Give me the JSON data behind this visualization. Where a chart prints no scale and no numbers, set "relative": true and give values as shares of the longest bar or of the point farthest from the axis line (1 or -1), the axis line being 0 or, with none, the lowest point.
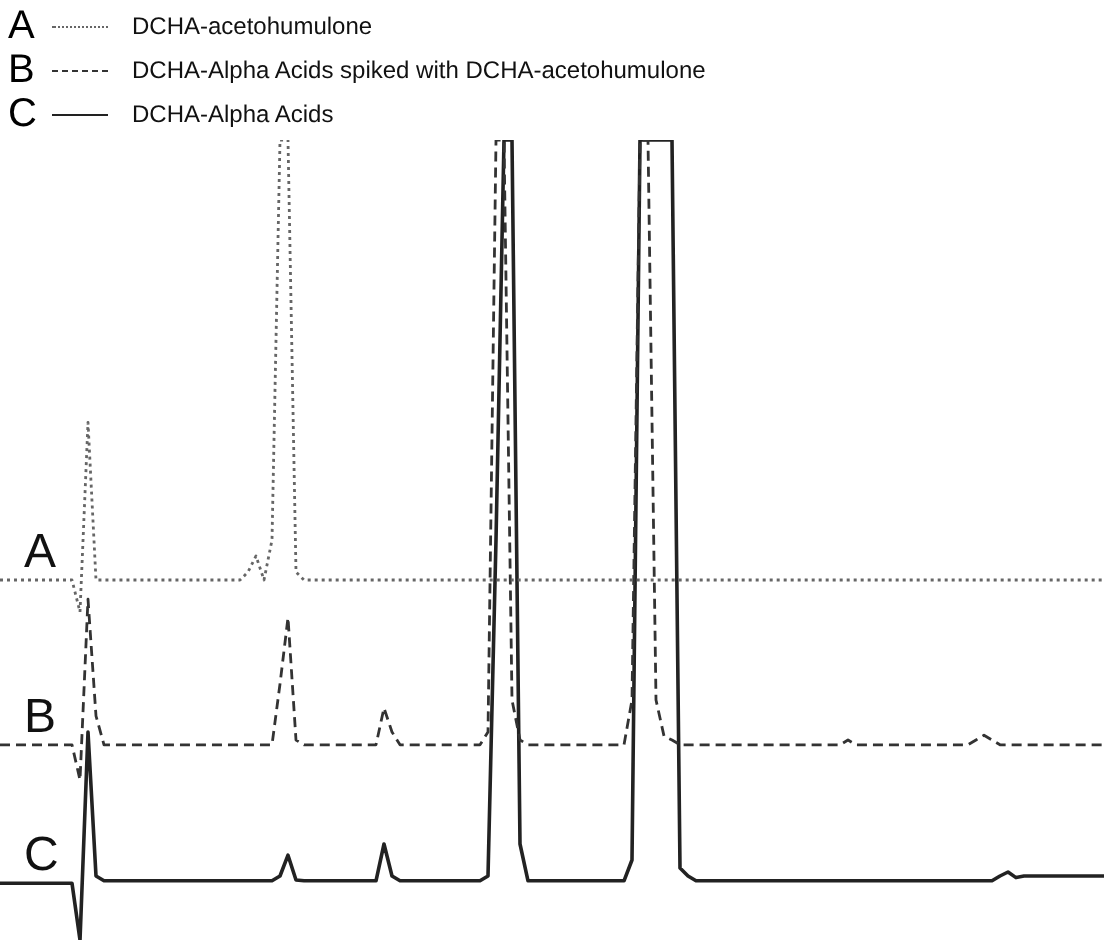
{
  "chart_data": {
    "type": "line",
    "relative": true,
    "legend": "top left",
    "marker": "none",
    "annotations": [
      "A",
      "B",
      "C"
    ],
    "categories": [
      null,
      null,
      null,
      null,
      null,
      null,
      null,
      null,
      null,
      null,
      null,
      null,
      null,
      null,
      null,
      null,
      null,
      null,
      null,
      null,
      null,
      null,
      null,
      null,
      null,
      null,
      null,
      null,
      null,
      null,
      null,
      null,
      null,
      null,
      null,
      null,
      null,
      null,
      null,
      null,
      null,
      null,
      null,
      null,
      null,
      null,
      null,
      null,
      null,
      null,
      null,
      null,
      null,
      null,
      null,
      null,
      null,
      null,
      null,
      null,
      null,
      null,
      null,
      null,
      null,
      null,
      null,
      null,
      null,
      null,
      null,
      null,
      null,
      null,
      null,
      null,
      null,
      null,
      null,
      null,
      null,
      null,
      null,
      null,
      null,
      null,
      null,
      null,
      null,
      null,
      null,
      null,
      null,
      null,
      null,
      null,
      null,
      null,
      null,
      null,
      null,
      null,
      null,
      null,
      null,
      null,
      null,
      null,
      null,
      null,
      null,
      null,
      null,
      null,
      null,
      null,
      null,
      null,
      null,
      null,
      null,
      null,
      null,
      null,
      null,
      null,
      null,
      null,
      null,
      null,
      null,
      null,
      null,
      null,
      null,
      null,
      null,
      null,
      null
    ],
    "series": [
      {
        "name": "DCHA-acetohumulone",
        "color": "#666666",
        "line_style": "dotted",
        "values": [
          0.45,
          0.45,
          0.45,
          0.45,
          0.45,
          0.45,
          0.45,
          0.45,
          0.45,
          0.45,
          0.41,
          0.647,
          0.45,
          0.45,
          0.45,
          0.45,
          0.45,
          0.45,
          0.45,
          0.45,
          0.45,
          0.45,
          0.45,
          0.45,
          0.45,
          0.45,
          0.45,
          0.45,
          0.45,
          0.45,
          0.45,
          0.46,
          0.48,
          0.45,
          0.5,
          1,
          1,
          0.46,
          0.45,
          0.45,
          0.45,
          0.45,
          0.45,
          0.45,
          0.45,
          0.45,
          0.45,
          0.45,
          0.45,
          0.45,
          0.45,
          0.45,
          0.45,
          0.45,
          0.45,
          0.45,
          0.45,
          0.45,
          0.45,
          0.45,
          0.45,
          0.45,
          0.45,
          0.45,
          0.45,
          0.45,
          0.45,
          0.45,
          0.45,
          0.45,
          0.45,
          0.45,
          0.45,
          0.45,
          0.45,
          0.45,
          0.45,
          0.45,
          0.45,
          0.45,
          0.45,
          0.45,
          0.45,
          0.45,
          0.45,
          0.45,
          0.45,
          0.45,
          0.45,
          0.45,
          0.45,
          0.45,
          0.45,
          0.45,
          0.45,
          0.45,
          0.45,
          0.45,
          0.45,
          0.45,
          0.45,
          0.45,
          0.45,
          0.45,
          0.45,
          0.45,
          0.45,
          0.45,
          0.45,
          0.45,
          0.45,
          0.45,
          0.45,
          0.45,
          0.45,
          0.45,
          0.45,
          0.45,
          0.45,
          0.45,
          0.45,
          0.45,
          0.45,
          0.45,
          0.45,
          0.45,
          0.45,
          0.45,
          0.45,
          0.45,
          0.45,
          0.45,
          0.45,
          0.45,
          0.45,
          0.45,
          0.45,
          0.45,
          0.45
        ]
      },
      {
        "name": "DCHA-Alpha Acids spiked with DCHA-acetohumulone",
        "color": "#333333",
        "line_style": "dashed",
        "values": [
          0.244,
          0.244,
          0.244,
          0.244,
          0.244,
          0.244,
          0.244,
          0.244,
          0.244,
          0.244,
          0.2,
          0.426,
          0.28,
          0.244,
          0.244,
          0.244,
          0.244,
          0.244,
          0.244,
          0.244,
          0.244,
          0.244,
          0.244,
          0.244,
          0.244,
          0.244,
          0.244,
          0.244,
          0.244,
          0.244,
          0.244,
          0.244,
          0.244,
          0.244,
          0.244,
          0.32,
          0.403,
          0.25,
          0.244,
          0.244,
          0.244,
          0.244,
          0.244,
          0.244,
          0.244,
          0.244,
          0.244,
          0.244,
          0.29,
          0.26,
          0.244,
          0.244,
          0.244,
          0.244,
          0.244,
          0.244,
          0.244,
          0.244,
          0.244,
          0.244,
          0.244,
          0.26,
          1,
          1,
          0.3,
          0.25,
          0.244,
          0.244,
          0.244,
          0.244,
          0.244,
          0.244,
          0.244,
          0.244,
          0.244,
          0.244,
          0.244,
          0.244,
          0.244,
          0.3,
          1,
          1,
          0.3,
          0.255,
          0.25,
          0.244,
          0.244,
          0.244,
          0.244,
          0.244,
          0.244,
          0.244,
          0.244,
          0.244,
          0.244,
          0.244,
          0.244,
          0.244,
          0.244,
          0.244,
          0.244,
          0.244,
          0.244,
          0.244,
          0.244,
          0.244,
          0.25,
          0.244,
          0.244,
          0.244,
          0.244,
          0.244,
          0.244,
          0.244,
          0.244,
          0.244,
          0.244,
          0.244,
          0.244,
          0.244,
          0.244,
          0.244,
          0.25,
          0.256,
          0.25,
          0.244,
          0.244,
          0.244,
          0.244,
          0.244,
          0.244,
          0.244,
          0.244,
          0.244,
          0.244,
          0.244,
          0.244,
          0.244,
          0.244
        ]
      },
      {
        "name": "DCHA-Alpha Acids",
        "color": "#222222",
        "line_style": "solid",
        "values": [
          0.071,
          0.071,
          0.071,
          0.071,
          0.071,
          0.071,
          0.071,
          0.071,
          0.071,
          0.071,
          0,
          0.26,
          0.08,
          0.074,
          0.074,
          0.074,
          0.074,
          0.074,
          0.074,
          0.074,
          0.074,
          0.074,
          0.074,
          0.074,
          0.074,
          0.074,
          0.074,
          0.074,
          0.074,
          0.074,
          0.074,
          0.074,
          0.074,
          0.074,
          0.074,
          0.08,
          0.106,
          0.075,
          0.074,
          0.074,
          0.074,
          0.074,
          0.074,
          0.074,
          0.074,
          0.074,
          0.074,
          0.074,
          0.12,
          0.08,
          0.074,
          0.074,
          0.074,
          0.074,
          0.074,
          0.074,
          0.074,
          0.074,
          0.074,
          0.074,
          0.074,
          0.08,
          0.5,
          1,
          1,
          0.12,
          0.074,
          0.074,
          0.074,
          0.074,
          0.074,
          0.074,
          0.074,
          0.074,
          0.074,
          0.074,
          0.074,
          0.074,
          0.074,
          0.1,
          1,
          1,
          1,
          1,
          1,
          0.09,
          0.08,
          0.074,
          0.074,
          0.074,
          0.074,
          0.074,
          0.074,
          0.074,
          0.074,
          0.074,
          0.074,
          0.074,
          0.074,
          0.074,
          0.074,
          0.074,
          0.074,
          0.074,
          0.074,
          0.074,
          0.074,
          0.074,
          0.074,
          0.074,
          0.074,
          0.074,
          0.074,
          0.074,
          0.074,
          0.074,
          0.074,
          0.074,
          0.074,
          0.074,
          0.074,
          0.074,
          0.074,
          0.074,
          0.074,
          0.08,
          0.085,
          0.078,
          0.08,
          0.08,
          0.08,
          0.08,
          0.08,
          0.08,
          0.08,
          0.08,
          0.08,
          0.08,
          0.08
        ]
      }
    ]
  }
}
